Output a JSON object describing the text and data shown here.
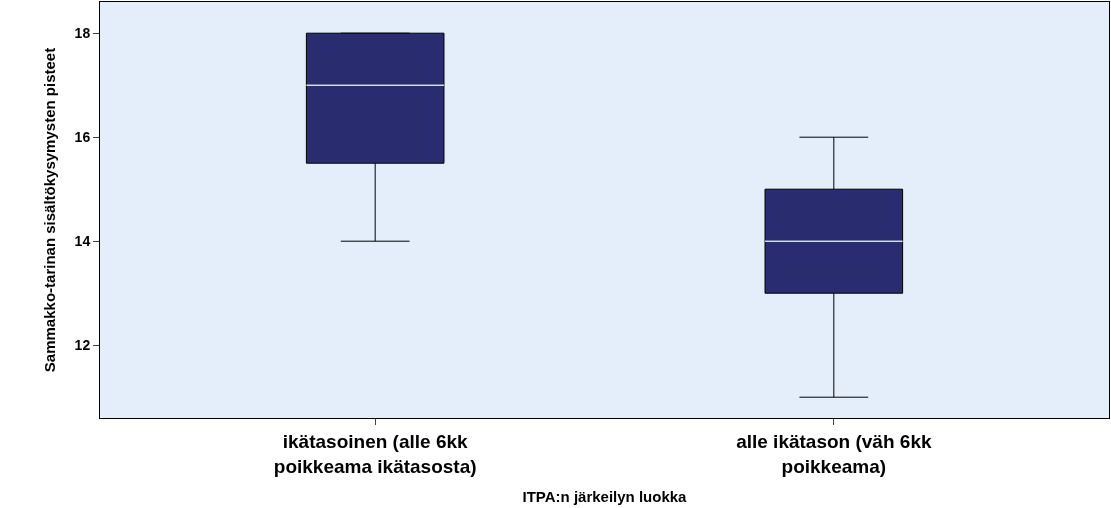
{
  "chart_data": {
    "type": "box",
    "xlabel": "ITPA:n järkeilyn luokka",
    "ylabel": "Sammakko-tarinan sisältökysymysten pisteet",
    "categories": [
      "ikätasoinen (alle 6kk\npoikkeama ikätasosta)",
      "alle ikätason (väh 6kk\npoikkeama)"
    ],
    "boxes": [
      {
        "low": 14,
        "q1": 15.5,
        "median": 17,
        "q3": 18,
        "high": 18
      },
      {
        "low": 11,
        "q1": 13,
        "median": 14,
        "q3": 15,
        "high": 16
      }
    ],
    "color": "#292c6e",
    "ylim": [
      10.6,
      18.6
    ],
    "yticks": [
      12,
      14,
      16,
      18
    ],
    "grid": false,
    "legend": false
  }
}
